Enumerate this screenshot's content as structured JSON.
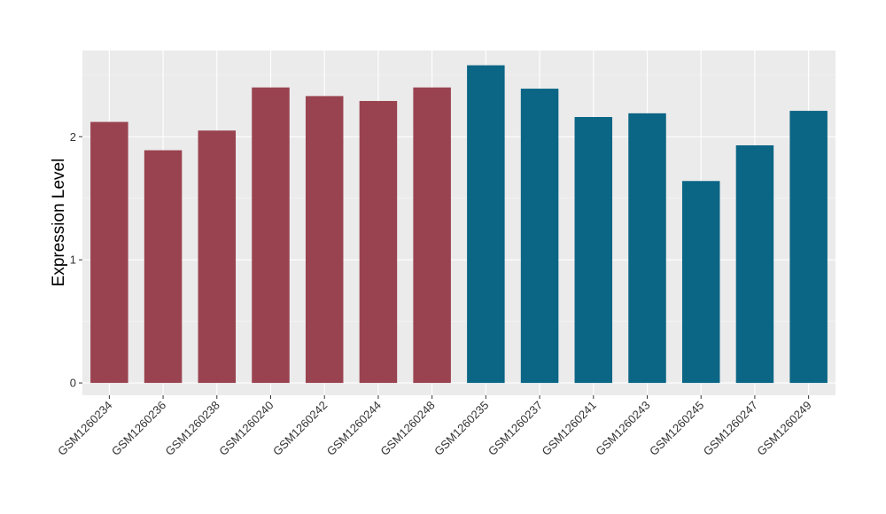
{
  "chart_data": {
    "type": "bar",
    "title": "",
    "xlabel": "",
    "ylabel": "Expression Level",
    "ylim": [
      -0.1,
      2.7
    ],
    "yticks": [
      0,
      1,
      2
    ],
    "grid": true,
    "legend": "none",
    "categories": [
      "GSM1260234",
      "GSM1260236",
      "GSM1260238",
      "GSM1260240",
      "GSM1260242",
      "GSM1260244",
      "GSM1260248",
      "GSM1260235",
      "GSM1260237",
      "GSM1260241",
      "GSM1260243",
      "GSM1260245",
      "GSM1260247",
      "GSM1260249"
    ],
    "values": [
      2.12,
      1.89,
      2.05,
      2.4,
      2.33,
      2.29,
      2.4,
      2.58,
      2.39,
      2.16,
      2.19,
      1.64,
      1.93,
      2.21
    ],
    "bar_colors": [
      "#9A4350",
      "#9A4350",
      "#9A4350",
      "#9A4350",
      "#9A4350",
      "#9A4350",
      "#9A4350",
      "#0B6585",
      "#0B6585",
      "#0B6585",
      "#0B6585",
      "#0B6585",
      "#0B6585",
      "#0B6585"
    ]
  },
  "colors": {
    "panel_background": "#EBEBEB",
    "grid_major": "#FFFFFF",
    "grid_minor": "#F5F5F5",
    "group_a": "#9A4350",
    "group_b": "#0B6585"
  }
}
